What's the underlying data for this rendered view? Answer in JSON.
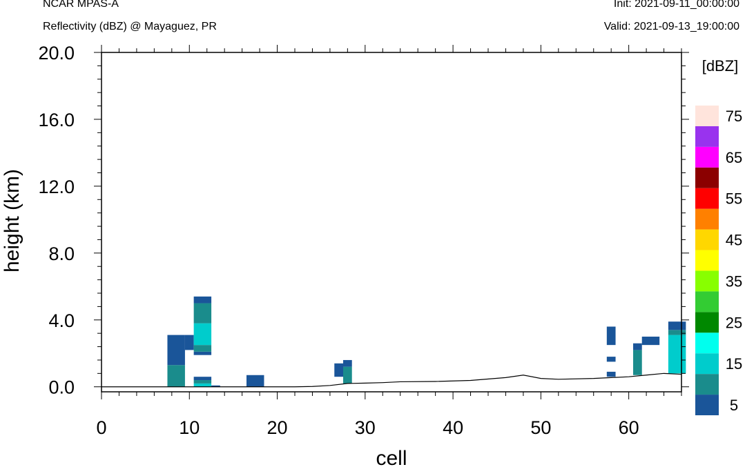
{
  "header": {
    "model": "NCAR MPAS-A",
    "subtitle": "Reflectivity (dBZ) @ Mayaguez, PR",
    "init": "Init: 2021-09-11_00:00:00",
    "valid": "Valid: 2021-09-13_19:00:00"
  },
  "chart_data": {
    "type": "heatmap",
    "title": "Reflectivity (dBZ) @ Mayaguez, PR",
    "xlabel": "cell",
    "ylabel": "height (km)",
    "xlim": [
      0,
      66
    ],
    "ylim": [
      -0.3,
      20.0
    ],
    "xticks": [
      0,
      10,
      20,
      30,
      40,
      50,
      60
    ],
    "xtick_labels": [
      "0",
      "10",
      "20",
      "30",
      "40",
      "50",
      "60"
    ],
    "yticks": [
      0.0,
      4.0,
      8.0,
      12.0,
      16.0,
      20.0
    ],
    "ytick_labels": [
      "0.0",
      "4.0",
      "8.0",
      "12.0",
      "16.0",
      "20.0"
    ],
    "colorbar": {
      "label": "[dBZ]",
      "levels": [
        5,
        10,
        15,
        20,
        25,
        30,
        35,
        40,
        45,
        50,
        55,
        60,
        65,
        70,
        75
      ],
      "colors": [
        "#1a5599",
        "#1a8c8c",
        "#00cccc",
        "#00ffee",
        "#008800",
        "#33cc33",
        "#88ff00",
        "#ffff00",
        "#ffd700",
        "#ff8000",
        "#ff0000",
        "#8b0000",
        "#ff00ff",
        "#9933ee",
        "#ffe4dc"
      ],
      "tick_values": [
        5,
        15,
        25,
        35,
        45,
        55,
        65,
        75
      ],
      "tick_labels": [
        "5",
        "15",
        "25",
        "35",
        "45",
        "55",
        "65",
        "75"
      ]
    },
    "terrain": [
      [
        0,
        0.0
      ],
      [
        22,
        0.0
      ],
      [
        24,
        0.02
      ],
      [
        26,
        0.08
      ],
      [
        28,
        0.2
      ],
      [
        30,
        0.22
      ],
      [
        32,
        0.25
      ],
      [
        34,
        0.3
      ],
      [
        38,
        0.32
      ],
      [
        42,
        0.38
      ],
      [
        46,
        0.55
      ],
      [
        48,
        0.7
      ],
      [
        50,
        0.5
      ],
      [
        52,
        0.45
      ],
      [
        56,
        0.5
      ],
      [
        58,
        0.55
      ],
      [
        60,
        0.6
      ],
      [
        62,
        0.7
      ],
      [
        64,
        0.8
      ],
      [
        66,
        0.75
      ]
    ],
    "cells": [
      {
        "x0": 7.5,
        "x1": 9.5,
        "y0": 0.0,
        "y1": 1.3,
        "dbz": 10
      },
      {
        "x0": 7.5,
        "x1": 9.5,
        "y0": 1.3,
        "y1": 3.1,
        "dbz": 5
      },
      {
        "x0": 9.5,
        "x1": 10.5,
        "y0": 2.2,
        "y1": 3.1,
        "dbz": 5
      },
      {
        "x0": 10.5,
        "x1": 12.5,
        "y0": 1.9,
        "y1": 2.1,
        "dbz": 5
      },
      {
        "x0": 10.5,
        "x1": 12.5,
        "y0": 2.1,
        "y1": 2.5,
        "dbz": 10
      },
      {
        "x0": 10.5,
        "x1": 12.5,
        "y0": 2.5,
        "y1": 3.8,
        "dbz": 15
      },
      {
        "x0": 10.5,
        "x1": 12.5,
        "y0": 3.8,
        "y1": 5.0,
        "dbz": 10
      },
      {
        "x0": 10.5,
        "x1": 12.5,
        "y0": 5.0,
        "y1": 5.4,
        "dbz": 5
      },
      {
        "x0": 10.5,
        "x1": 12.5,
        "y0": 0.0,
        "y1": 0.2,
        "dbz": 15
      },
      {
        "x0": 10.5,
        "x1": 12.5,
        "y0": 0.2,
        "y1": 0.4,
        "dbz": 10
      },
      {
        "x0": 10.5,
        "x1": 12.5,
        "y0": 0.4,
        "y1": 0.6,
        "dbz": 5
      },
      {
        "x0": 12.5,
        "x1": 13.5,
        "y0": 0.0,
        "y1": 0.08,
        "dbz": 5
      },
      {
        "x0": 16.5,
        "x1": 18.5,
        "y0": 0.0,
        "y1": 0.7,
        "dbz": 5
      },
      {
        "x0": 26.5,
        "x1": 27.5,
        "y0": 0.6,
        "y1": 1.4,
        "dbz": 5
      },
      {
        "x0": 27.5,
        "x1": 28.5,
        "y0": 0.2,
        "y1": 1.2,
        "dbz": 10
      },
      {
        "x0": 27.5,
        "x1": 28.5,
        "y0": 1.2,
        "y1": 1.6,
        "dbz": 5
      },
      {
        "x0": 57.5,
        "x1": 58.5,
        "y0": 2.5,
        "y1": 3.6,
        "dbz": 5
      },
      {
        "x0": 57.5,
        "x1": 58.5,
        "y0": 1.5,
        "y1": 1.8,
        "dbz": 5
      },
      {
        "x0": 57.5,
        "x1": 58.5,
        "y0": 0.6,
        "y1": 0.9,
        "dbz": 5
      },
      {
        "x0": 60.5,
        "x1": 61.5,
        "y0": 0.7,
        "y1": 2.2,
        "dbz": 10
      },
      {
        "x0": 60.5,
        "x1": 61.5,
        "y0": 2.2,
        "y1": 2.6,
        "dbz": 5
      },
      {
        "x0": 61.5,
        "x1": 63.5,
        "y0": 2.5,
        "y1": 3.0,
        "dbz": 5
      },
      {
        "x0": 64.5,
        "x1": 66.5,
        "y0": 0.8,
        "y1": 3.1,
        "dbz": 15
      },
      {
        "x0": 64.5,
        "x1": 66.5,
        "y0": 3.1,
        "y1": 3.4,
        "dbz": 10
      },
      {
        "x0": 64.5,
        "x1": 66.5,
        "y0": 3.4,
        "y1": 3.9,
        "dbz": 5
      }
    ]
  }
}
